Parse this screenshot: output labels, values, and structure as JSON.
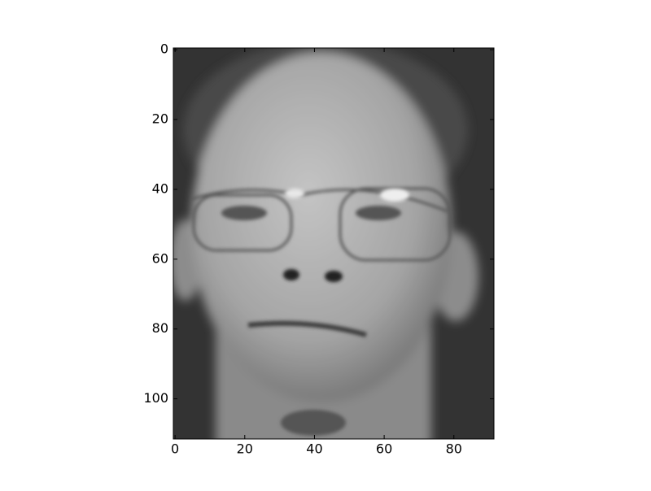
{
  "chart_data": {
    "type": "image",
    "xlim": [
      -0.5,
      91.5
    ],
    "xticks": [
      0,
      20,
      40,
      60,
      80
    ],
    "ylim": [
      111.5,
      -0.5
    ],
    "yticks": [
      0,
      20,
      40,
      60,
      80,
      100
    ]
  }
}
